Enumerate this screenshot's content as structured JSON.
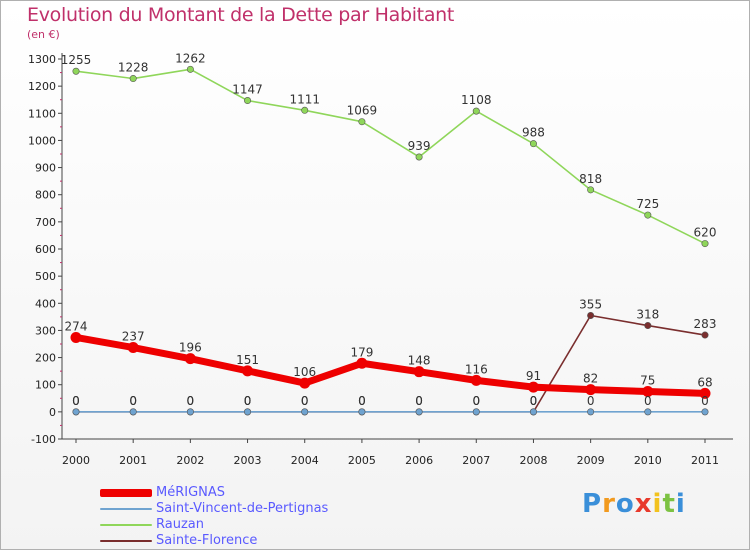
{
  "title": "Evolution du Montant de la Dette par Habitant",
  "subtitle": "(en €)",
  "logo": {
    "text": "Proxiti",
    "letters": [
      {
        "ch": "P",
        "color": "#3a8fd9"
      },
      {
        "ch": "r",
        "color": "#f29a1e"
      },
      {
        "ch": "o",
        "color": "#3a8fd9"
      },
      {
        "ch": "x",
        "color": "#e8392b"
      },
      {
        "ch": "i",
        "color": "#f2c21e"
      },
      {
        "ch": "t",
        "color": "#7cc242"
      },
      {
        "ch": "i",
        "color": "#3a8fd9"
      }
    ]
  },
  "chart_data": {
    "type": "line",
    "title": "Evolution du Montant de la Dette par Habitant",
    "ylabel": "(en €)",
    "x": [
      2000,
      2001,
      2002,
      2003,
      2004,
      2005,
      2006,
      2007,
      2008,
      2009,
      2010,
      2011
    ],
    "ylim": [
      -100,
      1300
    ],
    "yticks": [
      -100,
      0,
      100,
      200,
      300,
      400,
      500,
      600,
      700,
      800,
      900,
      1000,
      1100,
      1200,
      1300
    ],
    "grid": false,
    "legend_position": "bottom-left",
    "series": [
      {
        "name": "MéRIGNAS",
        "color": "#ee0000",
        "width": "thick",
        "values": [
          274,
          237,
          196,
          151,
          106,
          179,
          148,
          116,
          91,
          82,
          75,
          68
        ]
      },
      {
        "name": "Saint-Vincent-de-Pertignas",
        "color": "#6fa3d0",
        "width": "thin",
        "values": [
          0,
          0,
          0,
          0,
          0,
          0,
          0,
          0,
          0,
          0,
          0,
          0
        ]
      },
      {
        "name": "Rauzan",
        "color": "#8fd65a",
        "width": "thin",
        "values": [
          1255,
          1228,
          1262,
          1147,
          1111,
          1069,
          939,
          1108,
          988,
          818,
          725,
          620
        ]
      },
      {
        "name": "Sainte-Florence",
        "color": "#7a2e2e",
        "width": "thin",
        "values": [
          0,
          0,
          0,
          0,
          0,
          0,
          0,
          0,
          0,
          355,
          318,
          283
        ]
      }
    ]
  }
}
